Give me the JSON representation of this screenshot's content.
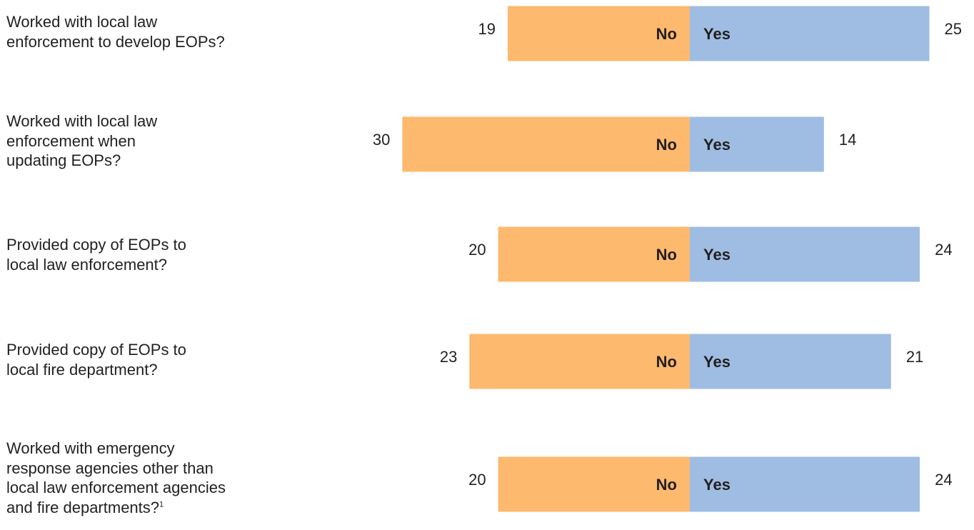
{
  "chart_data": {
    "type": "bar",
    "layout": "diverging",
    "categories": [
      "Worked with local law enforcement to develop EOPs?",
      "Worked with local law enforcement when updating EOPs?",
      "Provided copy of EOPs to local law enforcement?",
      "Provided copy of EOPs to local fire department?",
      "Worked with emergency response agencies other than local law enforcement agencies and fire departments?1"
    ],
    "category_lines": [
      [
        "Worked with local law",
        "enforcement to develop EOPs?"
      ],
      [
        "Worked with local law",
        "enforcement when",
        "updating EOPs?"
      ],
      [
        "Provided copy of EOPs to",
        "local law enforcement?"
      ],
      [
        "Provided copy of EOPs to",
        "local fire department?"
      ],
      [
        "Worked with emergency",
        "response agencies other than",
        "local law enforcement agencies",
        "and fire departments?"
      ]
    ],
    "footnote_marks": [
      "",
      "",
      "",
      "",
      "1"
    ],
    "series": [
      {
        "name": "No",
        "color": "#fdb96e",
        "values": [
          19,
          30,
          20,
          23,
          20
        ]
      },
      {
        "name": "Yes",
        "color": "#9fbde3",
        "values": [
          25,
          14,
          24,
          21,
          24
        ]
      }
    ],
    "title": "",
    "xlabel": "",
    "ylabel": "",
    "grid": false,
    "legend": "none"
  }
}
